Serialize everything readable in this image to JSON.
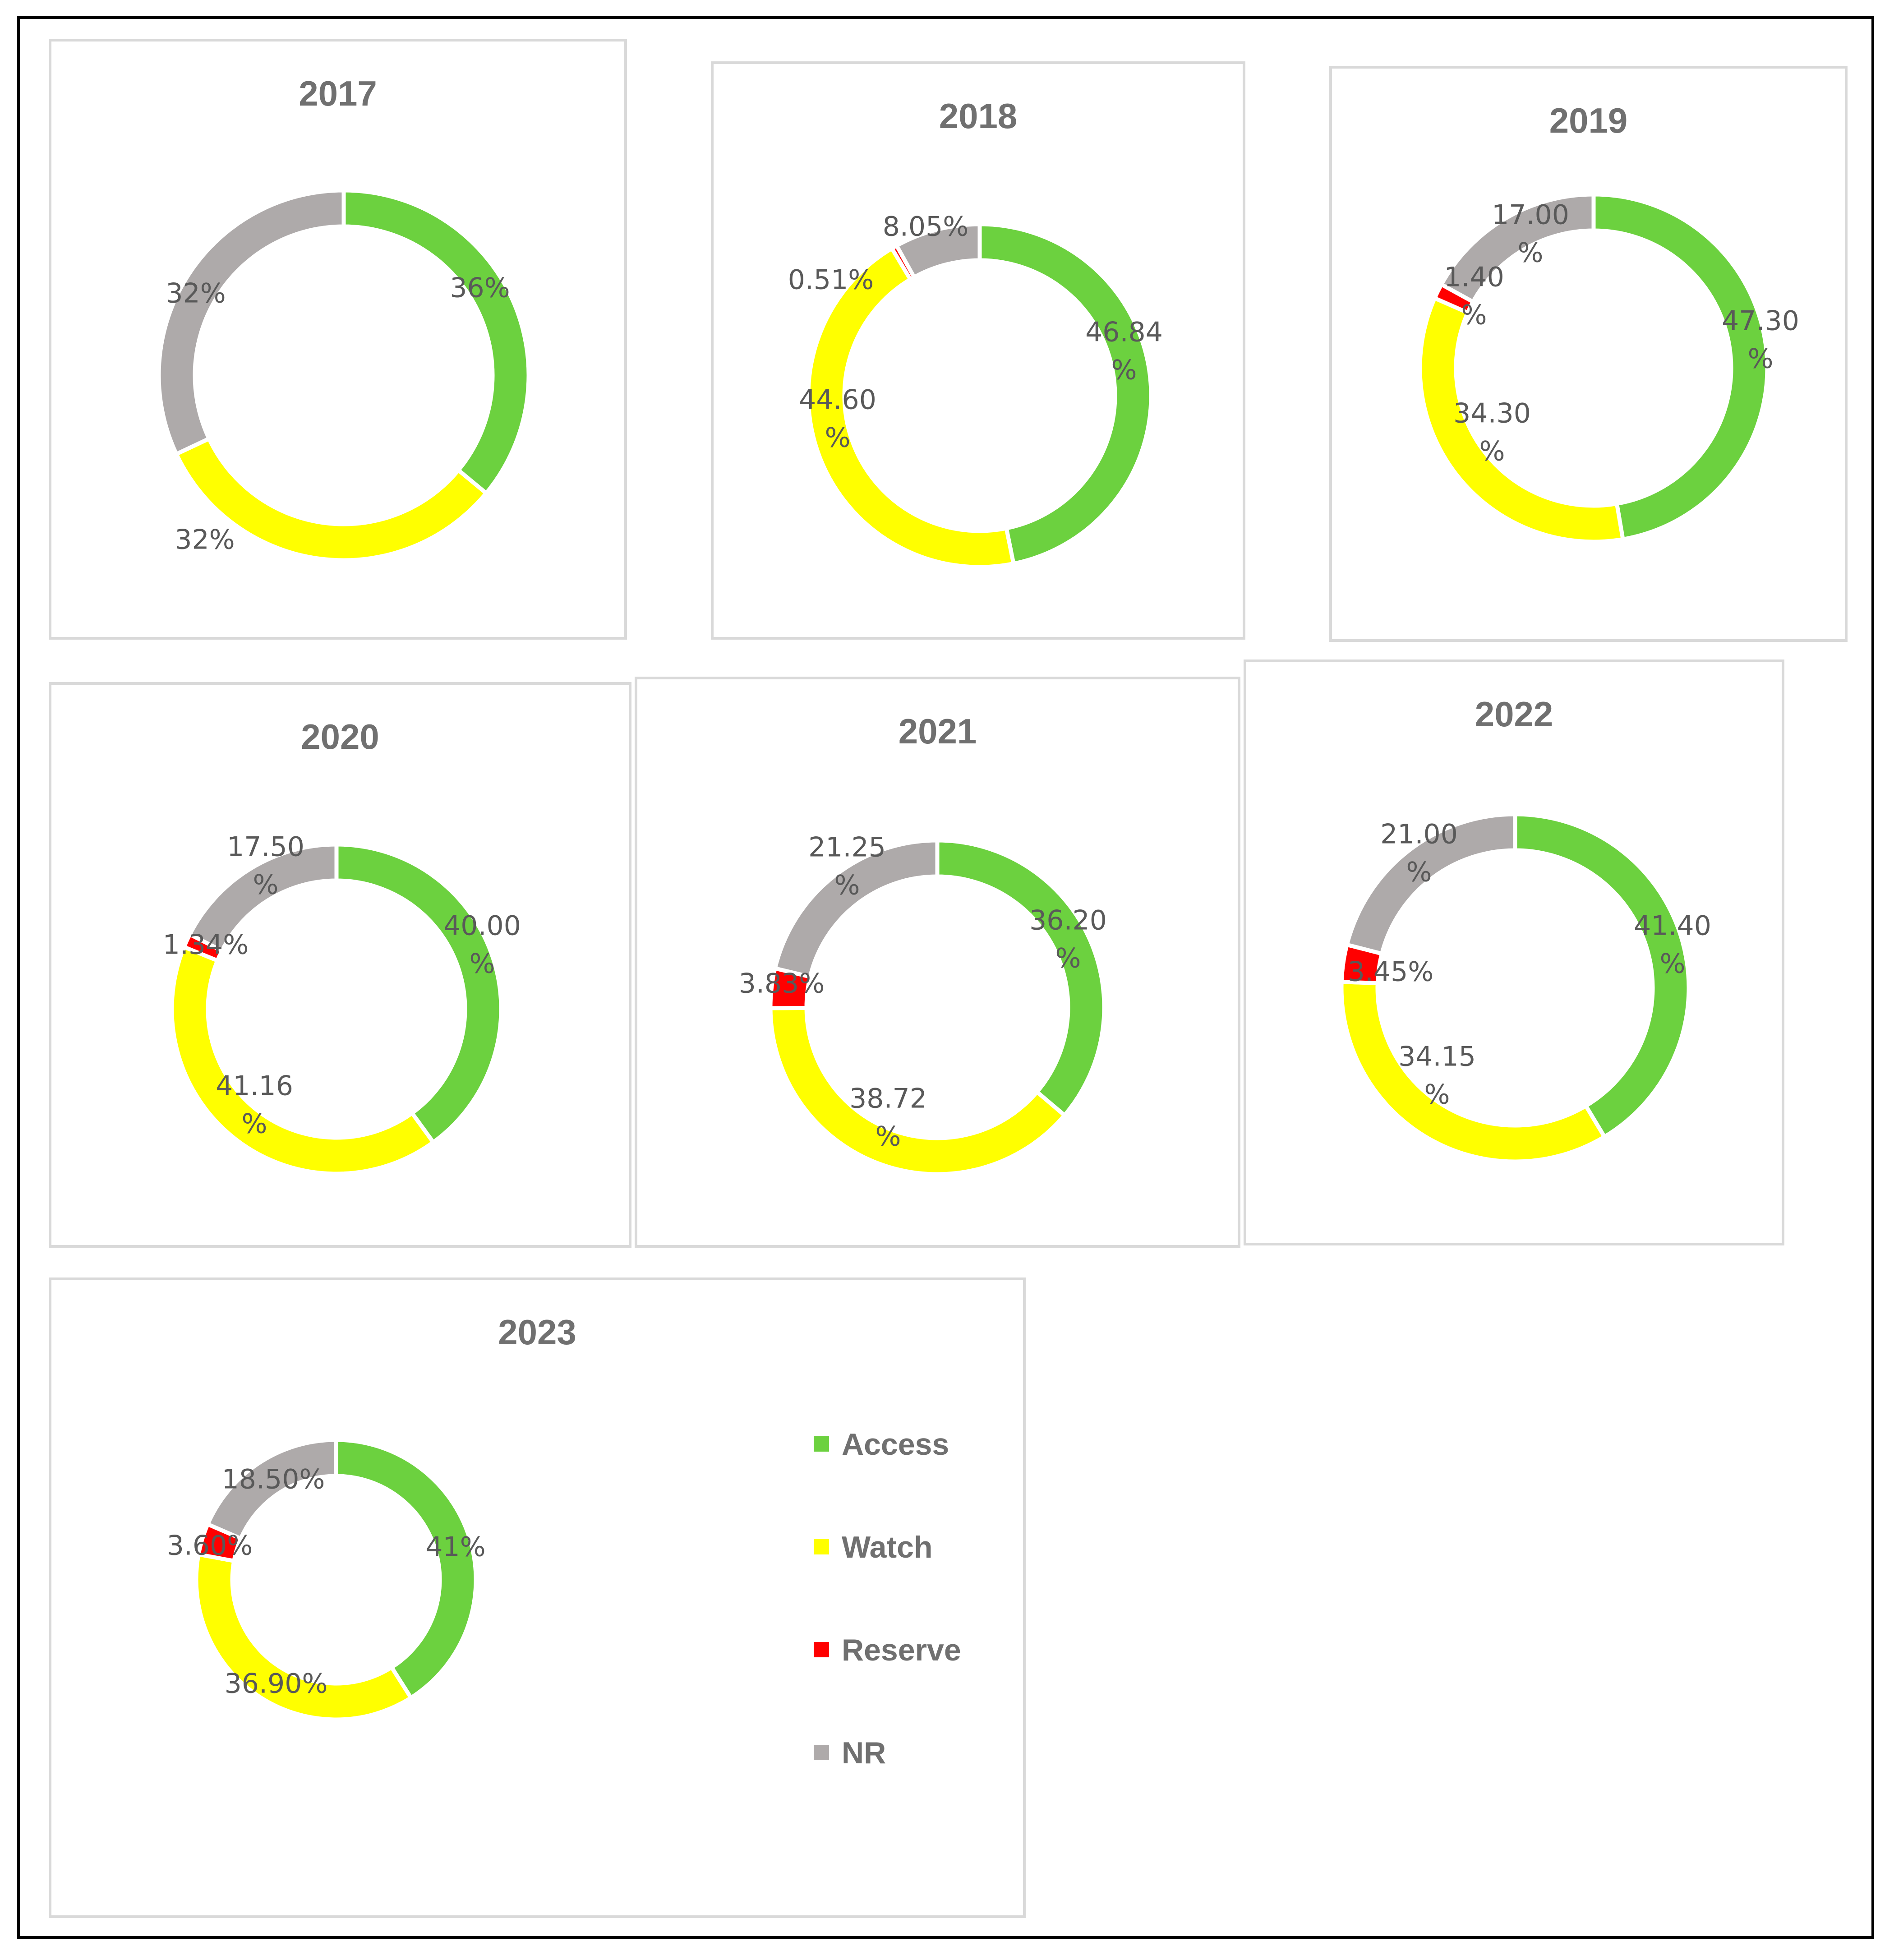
{
  "colors": {
    "Access": "#6cd13f",
    "Watch": "#ffff00",
    "Reserve": "#ff0000",
    "NR": "#aeaaaa"
  },
  "legend": [
    {
      "name": "Access",
      "label": "Access",
      "color": "#6cd13f"
    },
    {
      "name": "Watch",
      "label": "Watch",
      "color": "#ffff00"
    },
    {
      "name": "Reserve",
      "label": "Reserve",
      "color": "#ff0000"
    },
    {
      "name": "NR",
      "label": "NR",
      "color": "#aeaaaa"
    }
  ],
  "chart_data": [
    {
      "type": "pie",
      "title": "2017",
      "categories": [
        "Access",
        "Watch",
        "Reserve",
        "NR"
      ],
      "values": [
        36,
        32,
        0,
        32
      ],
      "data_labels": [
        [
          "36%"
        ],
        [
          "32%"
        ],
        [],
        [
          "32%"
        ]
      ]
    },
    {
      "type": "pie",
      "title": "2018",
      "categories": [
        "Access",
        "Watch",
        "Reserve",
        "NR"
      ],
      "values": [
        46.84,
        44.6,
        0.51,
        8.05
      ],
      "data_labels": [
        [
          "46.84",
          "%"
        ],
        [
          "44.60",
          "%"
        ],
        [
          "0.51%"
        ],
        [
          "8.05%"
        ]
      ]
    },
    {
      "type": "pie",
      "title": "2019",
      "categories": [
        "Access",
        "Watch",
        "Reserve",
        "NR"
      ],
      "values": [
        47.3,
        34.3,
        1.4,
        17.0
      ],
      "data_labels": [
        [
          "47.30",
          "%"
        ],
        [
          "34.30",
          "%"
        ],
        [
          "1.40",
          "%"
        ],
        [
          "17.00",
          "%"
        ]
      ]
    },
    {
      "type": "pie",
      "title": "2020",
      "categories": [
        "Access",
        "Watch",
        "Reserve",
        "NR"
      ],
      "values": [
        40.0,
        41.16,
        1.34,
        17.5
      ],
      "data_labels": [
        [
          "40.00",
          "%"
        ],
        [
          "41.16",
          "%"
        ],
        [
          "1.34%"
        ],
        [
          "17.50",
          "%"
        ]
      ]
    },
    {
      "type": "pie",
      "title": "2021",
      "categories": [
        "Access",
        "Watch",
        "Reserve",
        "NR"
      ],
      "values": [
        36.2,
        38.72,
        3.83,
        21.25
      ],
      "data_labels": [
        [
          "36.20",
          "%"
        ],
        [
          "38.72",
          "%"
        ],
        [
          "3.83%"
        ],
        [
          "21.25",
          "%"
        ]
      ]
    },
    {
      "type": "pie",
      "title": "2022",
      "categories": [
        "Access",
        "Watch",
        "Reserve",
        "NR"
      ],
      "values": [
        41.4,
        34.15,
        3.45,
        21.0
      ],
      "data_labels": [
        [
          "41.40",
          "%"
        ],
        [
          "34.15",
          "%"
        ],
        [
          "3.45%"
        ],
        [
          "21.00",
          "%"
        ]
      ]
    },
    {
      "type": "pie",
      "title": "2023",
      "categories": [
        "Access",
        "Watch",
        "Reserve",
        "NR"
      ],
      "values": [
        41,
        36.9,
        3.6,
        18.5
      ],
      "data_labels": [
        [
          "41%"
        ],
        [
          "36.90%"
        ],
        [
          "3.60%"
        ],
        [
          "18.50%"
        ]
      ]
    }
  ]
}
